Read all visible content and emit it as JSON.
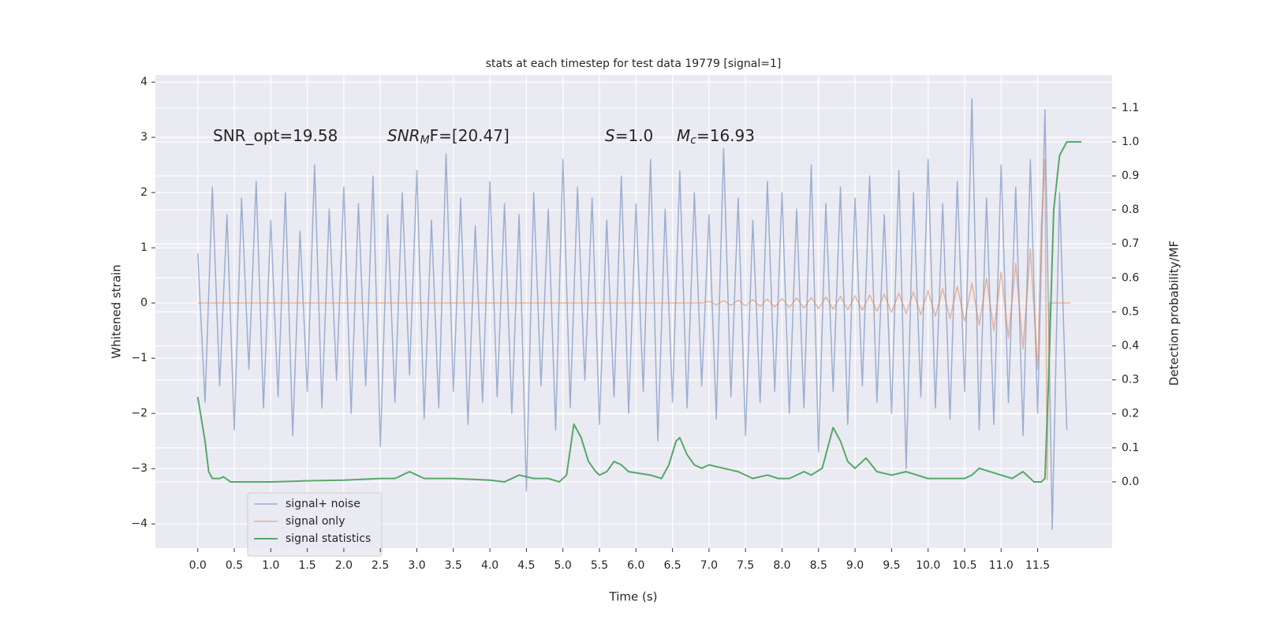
{
  "chart_data": {
    "type": "line",
    "title": "stats at each timestep for test data 19779 [signal=1]",
    "xlabel": "Time (s)",
    "ylabel": "Whitened strain",
    "y2label": "Detection probability/MF",
    "xlim": [
      -0.58,
      12.52
    ],
    "ylim": [
      -4.44,
      4.13
    ],
    "y2lim": [
      -0.195,
      1.197
    ],
    "xticks": [
      {
        "value": 0,
        "label": "0.0"
      },
      0.5,
      {
        "value": 1,
        "label": "1.0"
      },
      1.5,
      {
        "value": 2,
        "label": "2.0"
      },
      2.5,
      {
        "value": 3,
        "label": "3.0"
      },
      3.5,
      {
        "value": 4,
        "label": "4.0"
      },
      4.5,
      {
        "value": 5,
        "label": "5.0"
      },
      5.5,
      {
        "value": 6,
        "label": "6.0"
      },
      6.5,
      {
        "value": 7,
        "label": "7.0"
      },
      7.5,
      {
        "value": 8,
        "label": "8.0"
      },
      8.5,
      {
        "value": 9,
        "label": "9.0"
      },
      9.5,
      {
        "value": 10,
        "label": "10.0"
      },
      10.5,
      {
        "value": 11,
        "label": "11.0"
      },
      11.5
    ],
    "yticks": [
      {
        "value": -4,
        "label": "−4"
      },
      {
        "value": -3,
        "label": "−3"
      },
      {
        "value": -2,
        "label": "−2"
      },
      {
        "value": -1,
        "label": "−1"
      },
      0,
      1,
      2,
      3,
      4
    ],
    "y2ticks": [
      {
        "value": 0,
        "label": "0.0"
      },
      0.1,
      0.2,
      0.3,
      0.4,
      0.5,
      0.6,
      0.7,
      0.8,
      0.9,
      {
        "value": 1,
        "label": "1.0"
      },
      1.1
    ],
    "grid": true,
    "legend": "lower left",
    "annotations": [
      {
        "text": "SNR_opt=19.58"
      },
      {
        "base": "SNR",
        "sub": "M",
        "rest": "F=[20.47]"
      },
      {
        "base": "S",
        "rest": "=1.0"
      },
      {
        "base": "M",
        "sub": "c",
        "rest": "=16.93"
      }
    ],
    "series": [
      {
        "name": "signal+ noise",
        "color": "#4c72b0",
        "axis": "y",
        "x": [
          0.0,
          0.1,
          0.2,
          0.3,
          0.4,
          0.5,
          0.6,
          0.7,
          0.8,
          0.9,
          1.0,
          1.1,
          1.2,
          1.3,
          1.4,
          1.5,
          1.6,
          1.7,
          1.8,
          1.9,
          2.0,
          2.1,
          2.2,
          2.3,
          2.4,
          2.5,
          2.6,
          2.7,
          2.8,
          2.9,
          3.0,
          3.1,
          3.2,
          3.3,
          3.4,
          3.5,
          3.6,
          3.7,
          3.8,
          3.9,
          4.0,
          4.1,
          4.2,
          4.3,
          4.4,
          4.5,
          4.6,
          4.7,
          4.8,
          4.9,
          5.0,
          5.1,
          5.2,
          5.3,
          5.4,
          5.5,
          5.6,
          5.7,
          5.8,
          5.9,
          6.0,
          6.1,
          6.2,
          6.3,
          6.4,
          6.5,
          6.6,
          6.7,
          6.8,
          6.9,
          7.0,
          7.1,
          7.2,
          7.3,
          7.4,
          7.5,
          7.6,
          7.7,
          7.8,
          7.9,
          8.0,
          8.1,
          8.2,
          8.3,
          8.4,
          8.5,
          8.6,
          8.7,
          8.8,
          8.9,
          9.0,
          9.1,
          9.2,
          9.3,
          9.4,
          9.5,
          9.6,
          9.7,
          9.8,
          9.9,
          10.0,
          10.1,
          10.2,
          10.3,
          10.4,
          10.5,
          10.6,
          10.7,
          10.8,
          10.9,
          11.0,
          11.1,
          11.2,
          11.3,
          11.4,
          11.5,
          11.6,
          11.7,
          11.8,
          11.9
        ],
        "values": [
          0.9,
          -1.8,
          2.1,
          -1.5,
          1.6,
          -2.3,
          1.9,
          -1.2,
          2.2,
          -1.9,
          1.5,
          -1.7,
          2.0,
          -2.4,
          1.3,
          -1.6,
          2.5,
          -1.9,
          1.7,
          -1.4,
          2.1,
          -2.0,
          1.8,
          -1.5,
          2.3,
          -2.6,
          1.6,
          -1.8,
          2.0,
          -1.3,
          2.4,
          -2.1,
          1.5,
          -1.9,
          2.7,
          -1.6,
          1.9,
          -2.2,
          1.4,
          -1.8,
          2.2,
          -1.7,
          1.8,
          -2.0,
          1.6,
          -3.4,
          2.0,
          -1.5,
          1.7,
          -2.3,
          2.6,
          -1.9,
          2.1,
          -1.4,
          1.9,
          -2.2,
          1.5,
          -1.7,
          2.3,
          -2.0,
          1.8,
          -1.6,
          2.6,
          -2.5,
          1.7,
          -1.8,
          2.4,
          -1.9,
          2.0,
          -1.5,
          1.6,
          -2.1,
          2.8,
          -1.7,
          1.9,
          -2.4,
          1.5,
          -1.8,
          2.2,
          -1.6,
          2.0,
          -2.0,
          1.7,
          -1.9,
          2.5,
          -2.7,
          1.8,
          -1.6,
          2.1,
          -2.2,
          1.9,
          -1.5,
          2.3,
          -1.8,
          1.6,
          -2.0,
          2.4,
          -3.0,
          2.0,
          -1.7,
          2.6,
          -1.9,
          1.8,
          -2.1,
          2.2,
          -1.6,
          3.7,
          -2.3,
          1.9,
          -2.2,
          2.5,
          -1.8,
          2.1,
          -2.4,
          2.6,
          -2.0,
          3.5,
          -4.1,
          2.0,
          -2.3
        ]
      },
      {
        "name": "signal only",
        "color": "#dd8452",
        "axis": "y",
        "x": [
          0.0,
          6.9,
          7.0,
          7.1,
          7.2,
          7.3,
          7.4,
          7.5,
          7.6,
          7.7,
          7.8,
          7.9,
          8.0,
          8.1,
          8.2,
          8.3,
          8.4,
          8.5,
          8.6,
          8.7,
          8.8,
          8.9,
          9.0,
          9.1,
          9.2,
          9.3,
          9.4,
          9.5,
          9.6,
          9.7,
          9.8,
          9.9,
          10.0,
          10.1,
          10.2,
          10.3,
          10.4,
          10.5,
          10.6,
          10.7,
          10.8,
          10.9,
          11.0,
          11.1,
          11.2,
          11.3,
          11.4,
          11.5,
          11.55,
          11.6,
          11.63,
          11.66,
          11.95
        ],
        "values": [
          0,
          0,
          0.03,
          -0.03,
          0.04,
          -0.04,
          0.05,
          -0.05,
          0.06,
          -0.06,
          0.07,
          -0.07,
          0.08,
          -0.08,
          0.09,
          -0.09,
          0.1,
          -0.1,
          0.11,
          -0.11,
          0.12,
          -0.12,
          0.13,
          -0.13,
          0.14,
          -0.15,
          0.16,
          -0.17,
          0.18,
          -0.19,
          0.2,
          -0.21,
          0.22,
          -0.24,
          0.26,
          -0.28,
          0.3,
          -0.33,
          0.36,
          -0.4,
          0.45,
          -0.5,
          0.56,
          -0.63,
          0.72,
          -0.83,
          0.98,
          -1.2,
          1.4,
          2.6,
          -3.2,
          0,
          0
        ]
      },
      {
        "name": "signal statistics",
        "color": "#55a868",
        "axis": "y2",
        "x": [
          0.0,
          0.1,
          0.15,
          0.2,
          0.3,
          0.35,
          0.45,
          0.6,
          1.0,
          1.5,
          2.0,
          2.5,
          2.7,
          2.8,
          2.9,
          3.0,
          3.1,
          3.5,
          4.0,
          4.2,
          4.4,
          4.6,
          4.8,
          4.95,
          5.05,
          5.15,
          5.25,
          5.35,
          5.45,
          5.5,
          5.6,
          5.7,
          5.8,
          5.9,
          6.2,
          6.35,
          6.45,
          6.55,
          6.6,
          6.7,
          6.8,
          6.9,
          7.0,
          7.2,
          7.4,
          7.6,
          7.8,
          7.95,
          8.1,
          8.3,
          8.4,
          8.55,
          8.7,
          8.8,
          8.9,
          9.0,
          9.15,
          9.3,
          9.5,
          9.7,
          9.85,
          10.0,
          10.3,
          10.5,
          10.6,
          10.7,
          10.85,
          11.0,
          11.15,
          11.3,
          11.45,
          11.55,
          11.6,
          11.65,
          11.72,
          11.8,
          11.9,
          12.1
        ],
        "values": [
          0.25,
          0.12,
          0.03,
          0.01,
          0.01,
          0.015,
          0.0,
          0.0,
          0.0,
          0.003,
          0.005,
          0.01,
          0.01,
          0.02,
          0.03,
          0.02,
          0.01,
          0.01,
          0.005,
          0.0,
          0.02,
          0.01,
          0.01,
          0.0,
          0.02,
          0.17,
          0.13,
          0.06,
          0.03,
          0.02,
          0.03,
          0.06,
          0.05,
          0.03,
          0.02,
          0.01,
          0.05,
          0.12,
          0.13,
          0.08,
          0.05,
          0.04,
          0.05,
          0.04,
          0.03,
          0.01,
          0.02,
          0.01,
          0.01,
          0.03,
          0.02,
          0.04,
          0.16,
          0.12,
          0.06,
          0.04,
          0.07,
          0.03,
          0.02,
          0.03,
          0.02,
          0.01,
          0.01,
          0.01,
          0.02,
          0.04,
          0.03,
          0.02,
          0.01,
          0.03,
          0.0,
          0.0,
          0.01,
          0.3,
          0.8,
          0.96,
          1.0,
          1.0
        ]
      }
    ]
  }
}
